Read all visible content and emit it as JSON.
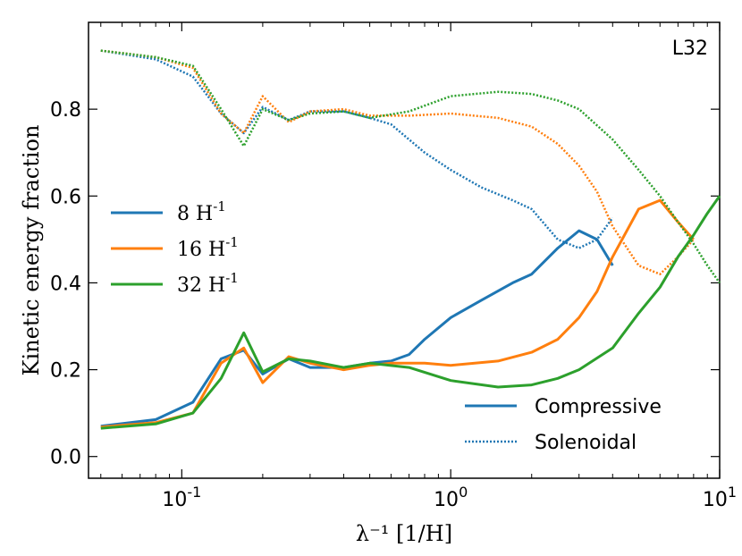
{
  "chart_data": {
    "type": "line",
    "panel_label": "L32",
    "xlabel": "λ⁻¹ [1/H]",
    "ylabel": "Kinetic energy fraction",
    "xscale": "log",
    "xlim": [
      0.045,
      10
    ],
    "ylim": [
      -0.05,
      1.0
    ],
    "yticks": [
      0.0,
      0.2,
      0.4,
      0.6,
      0.8
    ],
    "ytick_labels": [
      "0.0",
      "0.2",
      "0.4",
      "0.6",
      "0.8"
    ],
    "xticks": [
      0.1,
      1,
      10
    ],
    "xtick_labels": [
      {
        "base": "10",
        "exp": "-1"
      },
      {
        "base": "10",
        "exp": "0"
      },
      {
        "base": "10",
        "exp": "1"
      }
    ],
    "grid": false,
    "legend_resolution": {
      "placement": "center-left",
      "entries": [
        {
          "label": "8 H",
          "sup": "-1",
          "color": "#1f77b4"
        },
        {
          "label": "16 H",
          "sup": "-1",
          "color": "#ff7f0e"
        },
        {
          "label": "32 H",
          "sup": "-1",
          "color": "#2ca02c"
        }
      ]
    },
    "legend_style": {
      "placement": "lower-right",
      "entries": [
        {
          "label": "Compressive",
          "style": "solid",
          "color": "#1f77b4"
        },
        {
          "label": "Solenoidal",
          "style": "dotted",
          "color": "#1f77b4"
        }
      ]
    },
    "series": [
      {
        "name": "8 H-1 Compressive",
        "color": "#1f77b4",
        "style": "solid",
        "points": [
          [
            0.05,
            0.07
          ],
          [
            0.08,
            0.085
          ],
          [
            0.11,
            0.125
          ],
          [
            0.14,
            0.225
          ],
          [
            0.17,
            0.245
          ],
          [
            0.2,
            0.19
          ],
          [
            0.25,
            0.225
          ],
          [
            0.3,
            0.205
          ],
          [
            0.4,
            0.205
          ],
          [
            0.5,
            0.215
          ],
          [
            0.6,
            0.22
          ],
          [
            0.7,
            0.235
          ],
          [
            0.8,
            0.27
          ],
          [
            1.0,
            0.32
          ],
          [
            1.3,
            0.36
          ],
          [
            1.7,
            0.4
          ],
          [
            2.0,
            0.42
          ],
          [
            2.5,
            0.48
          ],
          [
            3.0,
            0.52
          ],
          [
            3.5,
            0.5
          ],
          [
            4.0,
            0.44
          ]
        ]
      },
      {
        "name": "8 H-1 Solenoidal",
        "color": "#1f77b4",
        "style": "dotted",
        "points": [
          [
            0.05,
            0.935
          ],
          [
            0.08,
            0.915
          ],
          [
            0.11,
            0.875
          ],
          [
            0.14,
            0.79
          ],
          [
            0.17,
            0.745
          ],
          [
            0.2,
            0.805
          ],
          [
            0.25,
            0.775
          ],
          [
            0.3,
            0.795
          ],
          [
            0.4,
            0.795
          ],
          [
            0.5,
            0.78
          ],
          [
            0.6,
            0.765
          ],
          [
            0.7,
            0.73
          ],
          [
            0.8,
            0.7
          ],
          [
            1.0,
            0.66
          ],
          [
            1.3,
            0.62
          ],
          [
            1.7,
            0.59
          ],
          [
            2.0,
            0.57
          ],
          [
            2.5,
            0.5
          ],
          [
            3.0,
            0.48
          ],
          [
            3.5,
            0.5
          ],
          [
            4.0,
            0.55
          ]
        ]
      },
      {
        "name": "16 H-1 Compressive",
        "color": "#ff7f0e",
        "style": "solid",
        "points": [
          [
            0.05,
            0.068
          ],
          [
            0.08,
            0.078
          ],
          [
            0.11,
            0.1
          ],
          [
            0.14,
            0.215
          ],
          [
            0.17,
            0.25
          ],
          [
            0.2,
            0.17
          ],
          [
            0.25,
            0.23
          ],
          [
            0.3,
            0.215
          ],
          [
            0.4,
            0.2
          ],
          [
            0.5,
            0.21
          ],
          [
            0.6,
            0.215
          ],
          [
            0.8,
            0.215
          ],
          [
            1.0,
            0.21
          ],
          [
            1.5,
            0.22
          ],
          [
            2.0,
            0.24
          ],
          [
            2.5,
            0.27
          ],
          [
            3.0,
            0.32
          ],
          [
            3.5,
            0.38
          ],
          [
            4.0,
            0.46
          ],
          [
            5.0,
            0.57
          ],
          [
            6.0,
            0.59
          ],
          [
            7.0,
            0.54
          ],
          [
            8.0,
            0.5
          ]
        ]
      },
      {
        "name": "16 H-1 Solenoidal",
        "color": "#ff7f0e",
        "style": "dotted",
        "points": [
          [
            0.05,
            0.935
          ],
          [
            0.08,
            0.92
          ],
          [
            0.11,
            0.895
          ],
          [
            0.14,
            0.79
          ],
          [
            0.17,
            0.745
          ],
          [
            0.2,
            0.83
          ],
          [
            0.25,
            0.77
          ],
          [
            0.3,
            0.795
          ],
          [
            0.4,
            0.8
          ],
          [
            0.5,
            0.785
          ],
          [
            0.7,
            0.785
          ],
          [
            1.0,
            0.79
          ],
          [
            1.5,
            0.78
          ],
          [
            2.0,
            0.76
          ],
          [
            2.5,
            0.72
          ],
          [
            3.0,
            0.67
          ],
          [
            3.5,
            0.61
          ],
          [
            4.0,
            0.53
          ],
          [
            5.0,
            0.44
          ],
          [
            6.0,
            0.42
          ],
          [
            7.0,
            0.46
          ],
          [
            8.0,
            0.5
          ]
        ]
      },
      {
        "name": "32 H-1 Compressive",
        "color": "#2ca02c",
        "style": "solid",
        "points": [
          [
            0.05,
            0.065
          ],
          [
            0.08,
            0.075
          ],
          [
            0.11,
            0.1
          ],
          [
            0.14,
            0.18
          ],
          [
            0.17,
            0.285
          ],
          [
            0.2,
            0.195
          ],
          [
            0.25,
            0.225
          ],
          [
            0.3,
            0.22
          ],
          [
            0.4,
            0.205
          ],
          [
            0.5,
            0.215
          ],
          [
            0.7,
            0.205
          ],
          [
            1.0,
            0.175
          ],
          [
            1.5,
            0.16
          ],
          [
            2.0,
            0.165
          ],
          [
            2.5,
            0.18
          ],
          [
            3.0,
            0.2
          ],
          [
            4.0,
            0.25
          ],
          [
            5.0,
            0.33
          ],
          [
            6.0,
            0.39
          ],
          [
            7.0,
            0.46
          ],
          [
            8.0,
            0.51
          ],
          [
            9.0,
            0.56
          ],
          [
            10.0,
            0.6
          ]
        ]
      },
      {
        "name": "32 H-1 Solenoidal",
        "color": "#2ca02c",
        "style": "dotted",
        "points": [
          [
            0.05,
            0.935
          ],
          [
            0.08,
            0.92
          ],
          [
            0.11,
            0.9
          ],
          [
            0.14,
            0.8
          ],
          [
            0.17,
            0.715
          ],
          [
            0.2,
            0.8
          ],
          [
            0.25,
            0.775
          ],
          [
            0.3,
            0.79
          ],
          [
            0.4,
            0.795
          ],
          [
            0.5,
            0.78
          ],
          [
            0.7,
            0.795
          ],
          [
            1.0,
            0.83
          ],
          [
            1.5,
            0.84
          ],
          [
            2.0,
            0.835
          ],
          [
            2.5,
            0.82
          ],
          [
            3.0,
            0.8
          ],
          [
            4.0,
            0.73
          ],
          [
            5.0,
            0.66
          ],
          [
            6.0,
            0.6
          ],
          [
            7.0,
            0.54
          ],
          [
            8.0,
            0.49
          ],
          [
            9.0,
            0.44
          ],
          [
            10.0,
            0.4
          ]
        ]
      }
    ]
  }
}
